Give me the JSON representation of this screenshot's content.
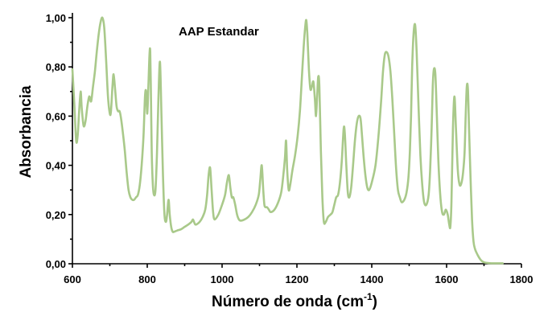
{
  "chart_data": {
    "type": "line",
    "title": "",
    "annotation": "AAP Estandar",
    "xlabel": "Número de onda (cm",
    "xlabel_sup": "-1",
    "xlabel_end": ")",
    "ylabel": "Absorbancia",
    "xlim": [
      600,
      1800
    ],
    "ylim": [
      0,
      1.0
    ],
    "x_ticks": [
      600,
      800,
      1000,
      1200,
      1400,
      1600,
      1800
    ],
    "x_tick_labels": [
      "600",
      "800",
      "1000",
      "1200",
      "1400",
      "1600",
      "1800"
    ],
    "y_ticks": [
      0,
      0.2,
      0.4,
      0.6,
      0.8,
      1.0
    ],
    "y_tick_labels": [
      "0,00",
      "0,20",
      "0,40",
      "0,60",
      "0,80",
      "1,00"
    ],
    "grid": false,
    "legend": "none",
    "line_color": "#a9c98a",
    "series": [
      {
        "x": [
          600,
          605,
          610,
          614,
          618,
          622,
          625,
          630,
          635,
          640,
          645,
          650,
          655,
          660,
          665,
          670,
          675,
          680,
          685,
          690,
          695,
          700,
          703,
          707,
          710,
          714,
          718,
          722,
          726,
          730,
          735,
          740,
          745,
          750,
          755,
          760,
          765,
          770,
          775,
          780,
          785,
          790,
          794,
          797,
          800,
          803,
          806,
          808,
          810,
          812,
          815,
          818,
          822,
          826,
          830,
          834,
          838,
          842,
          846,
          850,
          853,
          857,
          860,
          864,
          868,
          872,
          880,
          890,
          900,
          910,
          918,
          922,
          925,
          928,
          932,
          940,
          948,
          955,
          960,
          964,
          968,
          972,
          976,
          980,
          990,
          1000,
          1008,
          1013,
          1018,
          1022,
          1026,
          1030,
          1035,
          1040,
          1045,
          1050,
          1060,
          1070,
          1080,
          1090,
          1098,
          1102,
          1106,
          1110,
          1113,
          1116,
          1120,
          1125,
          1130,
          1140,
          1150,
          1158,
          1163,
          1168,
          1171,
          1174,
          1178,
          1182,
          1188,
          1195,
          1202,
          1208,
          1213,
          1218,
          1222,
          1225,
          1228,
          1232,
          1236,
          1240,
          1244,
          1248,
          1251,
          1254,
          1257,
          1260,
          1264,
          1268,
          1272,
          1277,
          1283,
          1290,
          1295,
          1300,
          1305,
          1310,
          1315,
          1320,
          1325,
          1328,
          1332,
          1336,
          1340,
          1345,
          1350,
          1355,
          1360,
          1365,
          1370,
          1374,
          1378,
          1383,
          1388,
          1393,
          1400,
          1410,
          1418,
          1425,
          1430,
          1435,
          1440,
          1445,
          1450,
          1455,
          1460,
          1465,
          1470,
          1475,
          1480,
          1487,
          1493,
          1498,
          1502,
          1505,
          1508,
          1512,
          1516,
          1520,
          1525,
          1530,
          1535,
          1540,
          1546,
          1552,
          1556,
          1560,
          1563,
          1566,
          1570,
          1574,
          1578,
          1583,
          1588,
          1593,
          1598,
          1603,
          1607,
          1610,
          1613,
          1617,
          1621,
          1625,
          1630,
          1635,
          1640,
          1644,
          1648,
          1651,
          1654,
          1657,
          1660,
          1664,
          1668,
          1672,
          1676,
          1680,
          1685,
          1690,
          1695,
          1700,
          1705,
          1710,
          1720,
          1730,
          1740,
          1750
        ],
        "y": [
          0.79,
          0.65,
          0.5,
          0.52,
          0.62,
          0.7,
          0.63,
          0.56,
          0.58,
          0.64,
          0.68,
          0.66,
          0.72,
          0.78,
          0.86,
          0.93,
          0.98,
          1.0,
          0.96,
          0.83,
          0.68,
          0.61,
          0.62,
          0.72,
          0.77,
          0.71,
          0.64,
          0.62,
          0.62,
          0.59,
          0.53,
          0.46,
          0.37,
          0.3,
          0.27,
          0.26,
          0.26,
          0.27,
          0.28,
          0.32,
          0.4,
          0.52,
          0.68,
          0.7,
          0.61,
          0.72,
          0.85,
          0.86,
          0.67,
          0.45,
          0.32,
          0.28,
          0.3,
          0.45,
          0.68,
          0.82,
          0.6,
          0.36,
          0.2,
          0.17,
          0.2,
          0.26,
          0.2,
          0.15,
          0.13,
          0.13,
          0.135,
          0.14,
          0.15,
          0.16,
          0.17,
          0.18,
          0.17,
          0.16,
          0.16,
          0.17,
          0.19,
          0.22,
          0.28,
          0.36,
          0.39,
          0.3,
          0.21,
          0.18,
          0.2,
          0.24,
          0.28,
          0.33,
          0.36,
          0.31,
          0.27,
          0.27,
          0.24,
          0.2,
          0.18,
          0.175,
          0.18,
          0.19,
          0.21,
          0.24,
          0.28,
          0.34,
          0.4,
          0.3,
          0.24,
          0.23,
          0.23,
          0.22,
          0.21,
          0.22,
          0.25,
          0.29,
          0.35,
          0.43,
          0.5,
          0.38,
          0.3,
          0.32,
          0.38,
          0.44,
          0.52,
          0.62,
          0.75,
          0.88,
          0.96,
          0.99,
          0.93,
          0.79,
          0.71,
          0.72,
          0.74,
          0.67,
          0.6,
          0.68,
          0.76,
          0.72,
          0.46,
          0.27,
          0.17,
          0.17,
          0.19,
          0.2,
          0.21,
          0.24,
          0.27,
          0.28,
          0.33,
          0.42,
          0.55,
          0.53,
          0.4,
          0.29,
          0.27,
          0.31,
          0.4,
          0.5,
          0.57,
          0.6,
          0.59,
          0.52,
          0.44,
          0.36,
          0.31,
          0.3,
          0.33,
          0.4,
          0.52,
          0.66,
          0.78,
          0.85,
          0.86,
          0.84,
          0.78,
          0.67,
          0.53,
          0.39,
          0.3,
          0.27,
          0.25,
          0.26,
          0.29,
          0.35,
          0.46,
          0.6,
          0.8,
          0.94,
          0.97,
          0.86,
          0.64,
          0.44,
          0.32,
          0.25,
          0.24,
          0.28,
          0.38,
          0.55,
          0.72,
          0.79,
          0.77,
          0.6,
          0.42,
          0.28,
          0.21,
          0.2,
          0.22,
          0.2,
          0.16,
          0.15,
          0.25,
          0.55,
          0.68,
          0.55,
          0.38,
          0.32,
          0.33,
          0.37,
          0.45,
          0.6,
          0.72,
          0.71,
          0.55,
          0.35,
          0.18,
          0.09,
          0.06,
          0.045,
          0.03,
          0.018,
          0.01,
          0.006,
          0.004,
          0.003,
          0.002,
          0.002,
          0.002,
          0.002
        ]
      }
    ]
  }
}
